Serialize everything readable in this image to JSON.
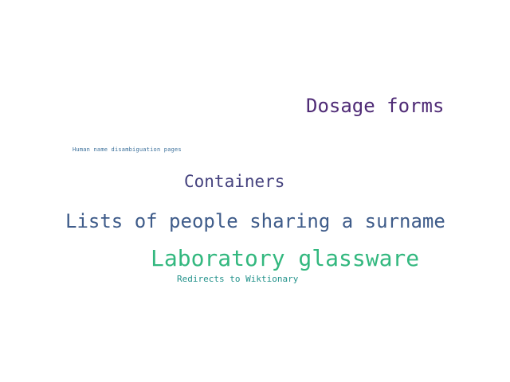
{
  "words": {
    "dosage_forms": {
      "text": "Dosage forms",
      "color": "#4f2b76"
    },
    "human_name": {
      "text": "Human name disambiguation pages",
      "color": "#3a6f9a"
    },
    "containers": {
      "text": "Containers",
      "color": "#45427e"
    },
    "lists_of_people": {
      "text": "Lists of people sharing a surname",
      "color": "#3f5c8a"
    },
    "laboratory_glassware": {
      "text": "Laboratory glassware",
      "color": "#33b87f"
    },
    "redirects": {
      "text": "Redirects to Wiktionary",
      "color": "#23928b"
    }
  }
}
